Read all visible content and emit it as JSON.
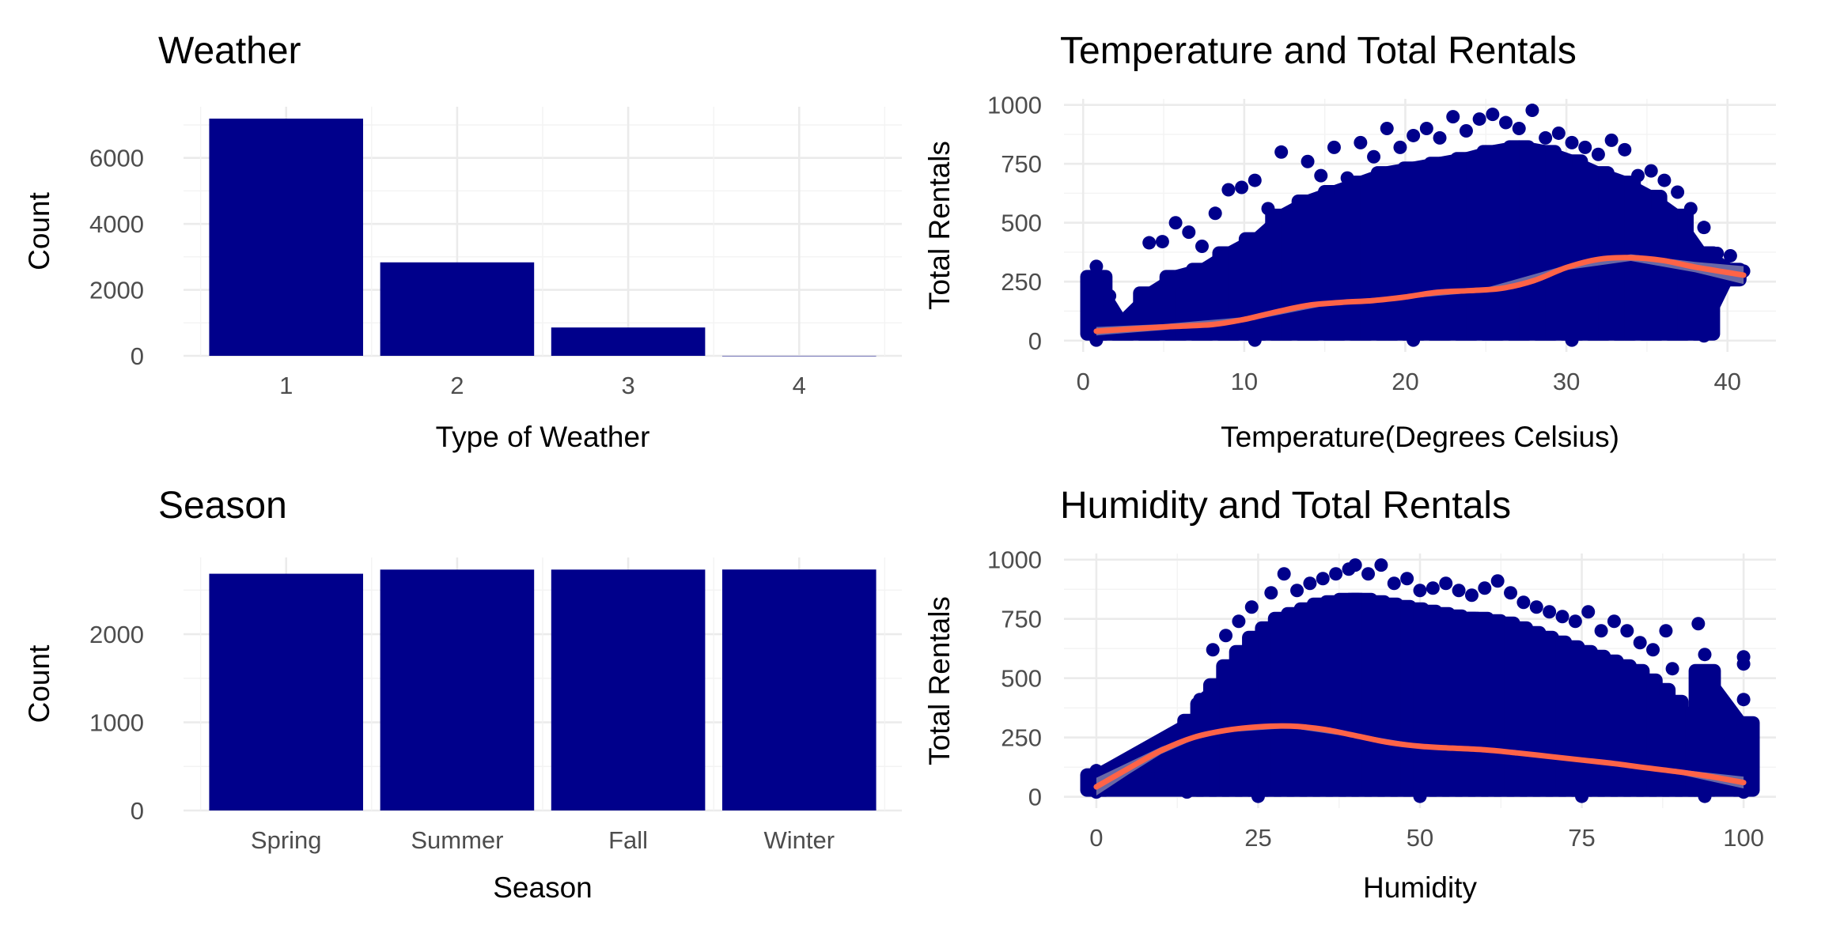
{
  "colors": {
    "bar": "#00008b",
    "point": "#00008b",
    "smooth": "#ff6347",
    "band": "#bebebe",
    "grid": "#ebebeb"
  },
  "chart_data": [
    {
      "id": "weather",
      "type": "bar",
      "title": "Weather",
      "xlabel": "Type of Weather",
      "ylabel": "Count",
      "categories": [
        "1",
        "2",
        "3",
        "4"
      ],
      "values": [
        7192,
        2834,
        859,
        1
      ],
      "ylim": [
        0,
        7192
      ],
      "yticks": [
        0,
        2000,
        4000,
        6000
      ],
      "grid": true
    },
    {
      "id": "season",
      "type": "bar",
      "title": "Season",
      "xlabel": "Season",
      "ylabel": "Count",
      "categories": [
        "Spring",
        "Summer",
        "Fall",
        "Winter"
      ],
      "values": [
        2686,
        2733,
        2733,
        2734
      ],
      "ylim": [
        0,
        2734
      ],
      "yticks": [
        0,
        1000,
        2000
      ],
      "grid": true
    },
    {
      "id": "temperature",
      "type": "scatter",
      "title": "Temperature and Total Rentals",
      "xlabel": "Temperature(Degrees Celsius)",
      "ylabel": "Total Rentals",
      "xlim": [
        0.82,
        41
      ],
      "ylim": [
        1,
        977
      ],
      "xticks": [
        0,
        10,
        20,
        30,
        40
      ],
      "yticks": [
        0,
        250,
        500,
        750,
        1000
      ],
      "grid": true,
      "points": [
        [
          0.82,
          315
        ],
        [
          0.82,
          150
        ],
        [
          0.82,
          60
        ],
        [
          0.82,
          20
        ],
        [
          1.64,
          190
        ],
        [
          2.46,
          60
        ],
        [
          2.46,
          30
        ],
        [
          3.28,
          90
        ],
        [
          4.1,
          200
        ],
        [
          4.1,
          415
        ],
        [
          4.92,
          420
        ],
        [
          5.74,
          250
        ],
        [
          5.74,
          500
        ],
        [
          6.56,
          460
        ],
        [
          7.38,
          400
        ],
        [
          8.2,
          540
        ],
        [
          9.02,
          640
        ],
        [
          9.84,
          650
        ],
        [
          10.66,
          680
        ],
        [
          11.48,
          560
        ],
        [
          12.3,
          800
        ],
        [
          13.12,
          520
        ],
        [
          13.94,
          760
        ],
        [
          14.76,
          700
        ],
        [
          15.58,
          820
        ],
        [
          16.4,
          690
        ],
        [
          17.22,
          840
        ],
        [
          18.04,
          780
        ],
        [
          18.86,
          900
        ],
        [
          19.68,
          820
        ],
        [
          20.5,
          870
        ],
        [
          21.32,
          900
        ],
        [
          22.14,
          860
        ],
        [
          22.96,
          950
        ],
        [
          23.78,
          890
        ],
        [
          24.6,
          940
        ],
        [
          25.42,
          960
        ],
        [
          26.24,
          925
        ],
        [
          27.06,
          900
        ],
        [
          27.88,
          977
        ],
        [
          28.7,
          860
        ],
        [
          29.52,
          880
        ],
        [
          30.34,
          840
        ],
        [
          31.16,
          820
        ],
        [
          31.98,
          790
        ],
        [
          32.8,
          850
        ],
        [
          33.62,
          810
        ],
        [
          34.44,
          700
        ],
        [
          35.26,
          720
        ],
        [
          36.08,
          680
        ],
        [
          36.9,
          630
        ],
        [
          37.72,
          560
        ],
        [
          38.54,
          480
        ],
        [
          39.36,
          370
        ],
        [
          40.18,
          360
        ],
        [
          41.0,
          295
        ],
        [
          0.82,
          2
        ],
        [
          10.66,
          2
        ],
        [
          20.5,
          2
        ],
        [
          30.34,
          2
        ],
        [
          38.54,
          20
        ]
      ],
      "fill_rows": [
        [
          0.82,
          0,
          300
        ],
        [
          2.46,
          0,
          120
        ],
        [
          4.1,
          0,
          230
        ],
        [
          5.74,
          0,
          300
        ],
        [
          7.38,
          0,
          330
        ],
        [
          9.02,
          0,
          400
        ],
        [
          10.66,
          0,
          460
        ],
        [
          12.3,
          0,
          560
        ],
        [
          13.94,
          0,
          620
        ],
        [
          15.58,
          0,
          660
        ],
        [
          17.22,
          0,
          700
        ],
        [
          18.86,
          0,
          740
        ],
        [
          20.5,
          0,
          760
        ],
        [
          22.14,
          0,
          780
        ],
        [
          23.78,
          0,
          800
        ],
        [
          25.42,
          0,
          830
        ],
        [
          27.06,
          0,
          850
        ],
        [
          28.7,
          0,
          830
        ],
        [
          30.34,
          0,
          790
        ],
        [
          31.98,
          0,
          740
        ],
        [
          33.62,
          0,
          700
        ],
        [
          35.26,
          0,
          640
        ],
        [
          36.9,
          0,
          560
        ],
        [
          38.54,
          0,
          400
        ],
        [
          40.18,
          230,
          330
        ]
      ],
      "smooth": [
        [
          0.82,
          40
        ],
        [
          5,
          58
        ],
        [
          8,
          68
        ],
        [
          10,
          90
        ],
        [
          12,
          122
        ],
        [
          14,
          150
        ],
        [
          16,
          162
        ],
        [
          18,
          170
        ],
        [
          20,
          185
        ],
        [
          22,
          205
        ],
        [
          24,
          212
        ],
        [
          26,
          222
        ],
        [
          28,
          255
        ],
        [
          30,
          310
        ],
        [
          32,
          345
        ],
        [
          34,
          352
        ],
        [
          36,
          340
        ],
        [
          38,
          312
        ],
        [
          41,
          278
        ]
      ],
      "band": [
        [
          0.82,
          22,
          58
        ],
        [
          5,
          45,
          70
        ],
        [
          10,
          80,
          100
        ],
        [
          15,
          148,
          165
        ],
        [
          20,
          178,
          192
        ],
        [
          25,
          208,
          224
        ],
        [
          30,
          300,
          320
        ],
        [
          34,
          338,
          366
        ],
        [
          38,
          290,
          334
        ],
        [
          41,
          240,
          316
        ]
      ]
    },
    {
      "id": "humidity",
      "type": "scatter",
      "title": "Humidity and Total Rentals",
      "xlabel": "Humidity",
      "ylabel": "Total Rentals",
      "xlim": [
        0,
        100
      ],
      "ylim": [
        1,
        977
      ],
      "xticks": [
        0,
        25,
        50,
        75,
        100
      ],
      "yticks": [
        0,
        250,
        500,
        750,
        1000
      ],
      "grid": true,
      "points": [
        [
          0,
          110
        ],
        [
          0,
          80
        ],
        [
          0,
          50
        ],
        [
          0,
          20
        ],
        [
          8,
          80
        ],
        [
          10,
          100
        ],
        [
          12,
          30
        ],
        [
          14,
          20
        ],
        [
          15,
          130
        ],
        [
          16,
          410
        ],
        [
          17,
          420
        ],
        [
          18,
          620
        ],
        [
          20,
          680
        ],
        [
          22,
          740
        ],
        [
          24,
          800
        ],
        [
          26,
          700
        ],
        [
          27,
          860
        ],
        [
          29,
          940
        ],
        [
          31,
          870
        ],
        [
          33,
          900
        ],
        [
          35,
          920
        ],
        [
          37,
          940
        ],
        [
          39,
          960
        ],
        [
          40,
          977
        ],
        [
          42,
          940
        ],
        [
          44,
          977
        ],
        [
          46,
          900
        ],
        [
          48,
          920
        ],
        [
          50,
          870
        ],
        [
          52,
          880
        ],
        [
          54,
          900
        ],
        [
          56,
          870
        ],
        [
          58,
          850
        ],
        [
          60,
          880
        ],
        [
          62,
          910
        ],
        [
          64,
          860
        ],
        [
          66,
          820
        ],
        [
          68,
          800
        ],
        [
          70,
          780
        ],
        [
          72,
          760
        ],
        [
          74,
          740
        ],
        [
          76,
          780
        ],
        [
          78,
          700
        ],
        [
          80,
          740
        ],
        [
          82,
          700
        ],
        [
          84,
          650
        ],
        [
          86,
          620
        ],
        [
          88,
          700
        ],
        [
          89,
          540
        ],
        [
          93,
          730
        ],
        [
          94,
          600
        ],
        [
          96,
          240
        ],
        [
          100,
          590
        ],
        [
          100,
          560
        ],
        [
          100,
          410
        ],
        [
          100,
          300
        ],
        [
          100,
          200
        ],
        [
          100,
          100
        ],
        [
          100,
          20
        ],
        [
          25,
          2
        ],
        [
          50,
          2
        ],
        [
          75,
          2
        ],
        [
          94,
          2
        ]
      ],
      "fill_rows": [
        [
          0,
          0,
          120
        ],
        [
          15,
          0,
          350
        ],
        [
          17,
          0,
          420
        ],
        [
          19,
          0,
          500
        ],
        [
          21,
          0,
          580
        ],
        [
          23,
          0,
          640
        ],
        [
          25,
          0,
          700
        ],
        [
          27,
          0,
          740
        ],
        [
          29,
          0,
          780
        ],
        [
          31,
          0,
          800
        ],
        [
          33,
          0,
          820
        ],
        [
          35,
          0,
          840
        ],
        [
          37,
          0,
          850
        ],
        [
          39,
          0,
          860
        ],
        [
          41,
          0,
          860
        ],
        [
          43,
          0,
          850
        ],
        [
          45,
          0,
          840
        ],
        [
          47,
          0,
          830
        ],
        [
          49,
          0,
          820
        ],
        [
          51,
          0,
          810
        ],
        [
          53,
          0,
          800
        ],
        [
          55,
          0,
          790
        ],
        [
          57,
          0,
          780
        ],
        [
          59,
          0,
          780
        ],
        [
          61,
          0,
          770
        ],
        [
          63,
          0,
          760
        ],
        [
          65,
          0,
          740
        ],
        [
          67,
          0,
          720
        ],
        [
          69,
          0,
          700
        ],
        [
          71,
          0,
          680
        ],
        [
          73,
          0,
          660
        ],
        [
          75,
          0,
          640
        ],
        [
          77,
          0,
          620
        ],
        [
          79,
          0,
          600
        ],
        [
          81,
          0,
          580
        ],
        [
          83,
          0,
          560
        ],
        [
          85,
          0,
          520
        ],
        [
          87,
          0,
          480
        ],
        [
          89,
          0,
          430
        ],
        [
          91,
          0,
          380
        ],
        [
          93,
          0,
          330
        ],
        [
          94,
          0,
          560
        ],
        [
          100,
          0,
          340
        ]
      ],
      "smooth": [
        [
          0,
          42
        ],
        [
          5,
          120
        ],
        [
          10,
          195
        ],
        [
          15,
          250
        ],
        [
          20,
          280
        ],
        [
          25,
          295
        ],
        [
          30,
          298
        ],
        [
          35,
          285
        ],
        [
          40,
          258
        ],
        [
          45,
          230
        ],
        [
          50,
          213
        ],
        [
          55,
          205
        ],
        [
          60,
          198
        ],
        [
          65,
          185
        ],
        [
          70,
          170
        ],
        [
          75,
          155
        ],
        [
          80,
          140
        ],
        [
          85,
          122
        ],
        [
          90,
          105
        ],
        [
          95,
          85
        ],
        [
          100,
          60
        ]
      ],
      "band": [
        [
          0,
          5,
          80
        ],
        [
          5,
          95,
          145
        ],
        [
          10,
          180,
          210
        ],
        [
          15,
          240,
          260
        ],
        [
          20,
          272,
          288
        ],
        [
          30,
          290,
          306
        ],
        [
          40,
          250,
          266
        ],
        [
          50,
          206,
          220
        ],
        [
          60,
          191,
          205
        ],
        [
          70,
          163,
          177
        ],
        [
          80,
          132,
          148
        ],
        [
          90,
          95,
          115
        ],
        [
          100,
          35,
          85
        ]
      ]
    }
  ]
}
